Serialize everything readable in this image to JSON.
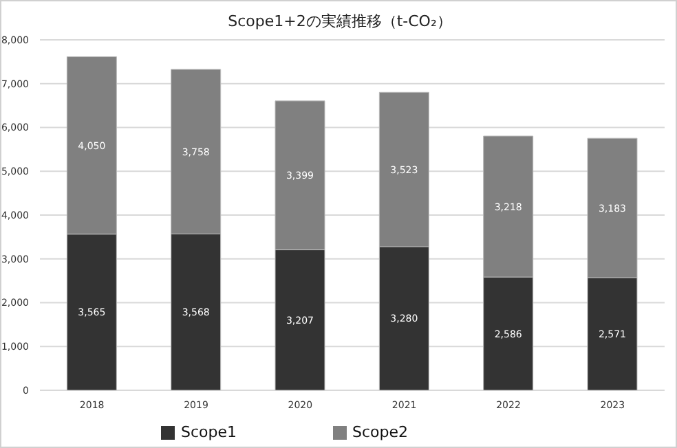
{
  "chart_data": {
    "type": "bar",
    "title": "Scope1+2の実績推移（t-CO₂）",
    "categories": [
      "2018",
      "2019",
      "2020",
      "2021",
      "2022",
      "2023"
    ],
    "series": [
      {
        "name": "Scope1",
        "color": "#333333",
        "values": [
          3565,
          3568,
          3207,
          3280,
          2586,
          2571
        ],
        "value_labels": [
          "3,565",
          "3,568",
          "3,207",
          "3,280",
          "2,586",
          "2,571"
        ]
      },
      {
        "name": "Scope2",
        "color": "#808080",
        "values": [
          4050,
          3758,
          3399,
          3523,
          3218,
          3183
        ],
        "value_labels": [
          "4,050",
          "3,758",
          "3,399",
          "3,523",
          "3,218",
          "3,183"
        ]
      }
    ],
    "stacked": true,
    "ylim": [
      0,
      8000
    ],
    "yticks": [
      {
        "value": 0,
        "label": "0"
      },
      {
        "value": 1000,
        "label": "1,000"
      },
      {
        "value": 2000,
        "label": "2,000"
      },
      {
        "value": 3000,
        "label": "3,000"
      },
      {
        "value": 4000,
        "label": "4,000"
      },
      {
        "value": 5000,
        "label": "5,000"
      },
      {
        "value": 6000,
        "label": "6,000"
      },
      {
        "value": 7000,
        "label": "7,000"
      },
      {
        "value": 8000,
        "label": "8,000"
      }
    ],
    "grid": "y",
    "legend": "bottom"
  }
}
